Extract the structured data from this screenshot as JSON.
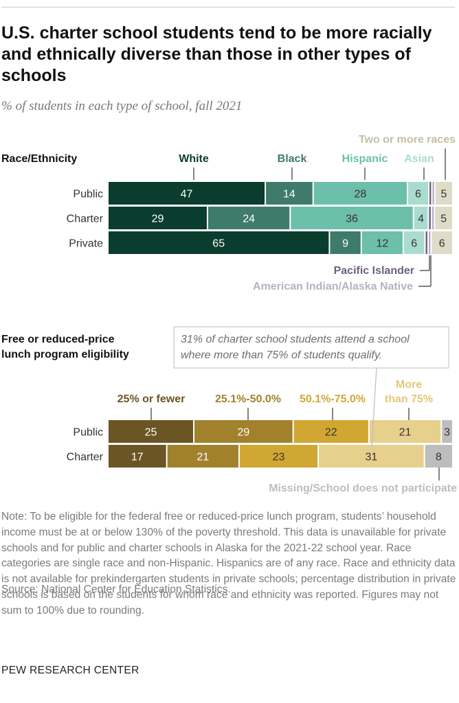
{
  "title": "U.S. charter school students tend to be more racially and ethnically diverse than those in other types of schools",
  "subtitle": "% of students in each type of school, fall 2021",
  "chart_data": [
    {
      "type": "bar",
      "stacked": true,
      "orientation": "horizontal",
      "section_label": "Race/Ethnicity",
      "categories": [
        "Public",
        "Charter",
        "Private"
      ],
      "series": [
        {
          "name": "White",
          "color": "#0b3d2e",
          "values": [
            47,
            29,
            65
          ]
        },
        {
          "name": "Black",
          "color": "#3e7b6a",
          "values": [
            14,
            24,
            9
          ]
        },
        {
          "name": "Hispanic",
          "color": "#6cbfab",
          "values": [
            28,
            36,
            12
          ]
        },
        {
          "name": "Asian",
          "color": "#a9dccf",
          "values": [
            6,
            4,
            6
          ]
        },
        {
          "name": "Pacific Islander",
          "color": "#6e5f7e",
          "values": [
            0.5,
            0.5,
            0.5
          ]
        },
        {
          "name": "American Indian/Alaska Native",
          "color": "#b6b2c4",
          "values": [
            0.5,
            0.5,
            0.5
          ]
        },
        {
          "name": "Two or more races",
          "color": "#dedbc8",
          "values": [
            5,
            5,
            6
          ]
        }
      ],
      "value_labels": [
        [
          "47",
          "14",
          "28",
          "6",
          "",
          "",
          "5"
        ],
        [
          "29",
          "24",
          "36",
          "4",
          "",
          "",
          "5"
        ],
        [
          "65",
          "9",
          "12",
          "6",
          "",
          "",
          "6"
        ]
      ]
    },
    {
      "type": "bar",
      "stacked": true,
      "orientation": "horizontal",
      "section_label": "Free or reduced-price lunch program eligibility",
      "categories": [
        "Public",
        "Charter"
      ],
      "series": [
        {
          "name": "25% or fewer",
          "color": "#6b5524",
          "values": [
            25,
            17
          ]
        },
        {
          "name": "25.1%-50.0%",
          "color": "#a1812c",
          "values": [
            29,
            21
          ]
        },
        {
          "name": "50.1%-75.0%",
          "color": "#d1a733",
          "values": [
            22,
            23
          ]
        },
        {
          "name": "More than 75%",
          "color": "#e7d08b",
          "values": [
            21,
            31
          ]
        },
        {
          "name": "Missing/School does not participate",
          "color": "#bdbdbd",
          "values": [
            3,
            8
          ]
        }
      ],
      "annotation": "31% of charter school students attend a school where more than 75% of students qualify."
    }
  ],
  "labels": {
    "race_section": "Race/Ethnicity",
    "lunch_section_line1": "Free or reduced-price",
    "lunch_section_line2": "lunch program eligibility",
    "legend_white": "White",
    "legend_black": "Black",
    "legend_hispanic": "Hispanic",
    "legend_asian": "Asian",
    "legend_two_more": "Two or more races",
    "legend_pacific": "Pacific Islander",
    "legend_amind": "American Indian/Alaska Native",
    "legend_l1": "25% or fewer",
    "legend_l2": "25.1%-50.0%",
    "legend_l3": "50.1%-75.0%",
    "legend_l4_line1": "More",
    "legend_l4_line2": "than 75%",
    "legend_missing": "Missing/School does not participate",
    "annotation_line1": "31% of charter school students attend a school",
    "annotation_line2": "where more than 75% of students qualify."
  },
  "colors": {
    "white": "#0b3d2e",
    "black": "#3e7b6a",
    "hispanic": "#6cbfab",
    "asian": "#a9dccf",
    "pacific": "#6e5f7e",
    "amind": "#b6b2c4",
    "two_more": "#dedbc8",
    "lunch1": "#6b5524",
    "lunch2": "#a1812c",
    "lunch3": "#d1a733",
    "lunch4": "#e7d08b",
    "missing": "#bdbdbd"
  },
  "note": "Note: To be eligible for the federal free or reduced-price lunch program, students’ household income must be at or below 130% of the poverty threshold. This data is unavailable for private schools and for public and charter schools in Alaska for the 2021-22 school year. Race categories are single race and non-Hispanic. Hispanics are of any race. Race and ethnicity data is not available for prekindergarten students in private schools; percentage distribution in private schools is based on the students for whom race and ethnicity was reported. Figures may not sum to 100% due to rounding.",
  "source": "Source: National Center for Education Statistics.",
  "footer": "PEW RESEARCH CENTER"
}
